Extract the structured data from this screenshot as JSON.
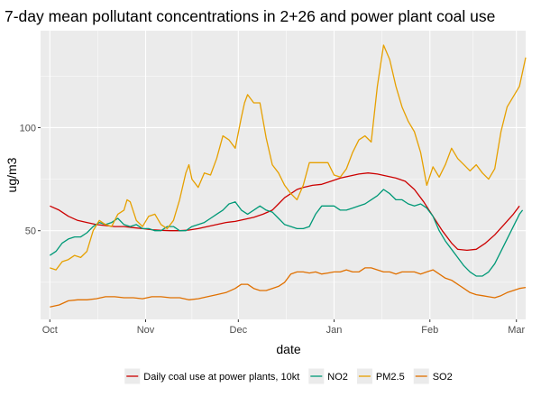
{
  "chart_data": {
    "type": "line",
    "title": "7-day mean pollutant concentrations in 2+26 and power plant coal use",
    "xlabel": "date",
    "ylabel": "ug/m3",
    "ylim": [
      7,
      147
    ],
    "xlim": [
      -3,
      154
    ],
    "x_ticks": [
      {
        "label": "Oct",
        "day": 0
      },
      {
        "label": "Nov",
        "day": 31
      },
      {
        "label": "Dec",
        "day": 61
      },
      {
        "label": "Jan",
        "day": 92
      },
      {
        "label": "Feb",
        "day": 123
      },
      {
        "label": "Mar",
        "day": 151
      }
    ],
    "y_ticks": [
      50,
      100
    ],
    "grid": true,
    "legend_position": "bottom",
    "x_unit": "days since Oct 1",
    "series": [
      {
        "name": "Daily coal use at power plants, 10kt",
        "color": "#cc0000",
        "points": [
          [
            0,
            62
          ],
          [
            3,
            60
          ],
          [
            6,
            57
          ],
          [
            9,
            55
          ],
          [
            12,
            54
          ],
          [
            15,
            53
          ],
          [
            18,
            52.5
          ],
          [
            21,
            52
          ],
          [
            24,
            52
          ],
          [
            27,
            51.5
          ],
          [
            30,
            51
          ],
          [
            33,
            50.5
          ],
          [
            36,
            50.2
          ],
          [
            39,
            50
          ],
          [
            42,
            50
          ],
          [
            45,
            50.3
          ],
          [
            48,
            51
          ],
          [
            51,
            52
          ],
          [
            54,
            53
          ],
          [
            57,
            54
          ],
          [
            60,
            54.5
          ],
          [
            63,
            55.5
          ],
          [
            66,
            56.5
          ],
          [
            69,
            58
          ],
          [
            72,
            60
          ],
          [
            74,
            63
          ],
          [
            76,
            66
          ],
          [
            78,
            68
          ],
          [
            80,
            70
          ],
          [
            82,
            71
          ],
          [
            85,
            72
          ],
          [
            88,
            72.5
          ],
          [
            91,
            74
          ],
          [
            94,
            75.5
          ],
          [
            97,
            76.5
          ],
          [
            100,
            77.5
          ],
          [
            103,
            78
          ],
          [
            106,
            77.5
          ],
          [
            109,
            76.5
          ],
          [
            112,
            75.5
          ],
          [
            115,
            74
          ],
          [
            118,
            70
          ],
          [
            121,
            64
          ],
          [
            124,
            57
          ],
          [
            127,
            50
          ],
          [
            130,
            44
          ],
          [
            132,
            41
          ],
          [
            135,
            40.5
          ],
          [
            138,
            41
          ],
          [
            141,
            44
          ],
          [
            144,
            48
          ],
          [
            147,
            53
          ],
          [
            150,
            58
          ],
          [
            152,
            62
          ]
        ]
      },
      {
        "name": "NO2",
        "color": "#009977",
        "points": [
          [
            0,
            38
          ],
          [
            2,
            40
          ],
          [
            4,
            44
          ],
          [
            6,
            46
          ],
          [
            8,
            47
          ],
          [
            10,
            47
          ],
          [
            12,
            49
          ],
          [
            14,
            52
          ],
          [
            16,
            54
          ],
          [
            18,
            53
          ],
          [
            20,
            54
          ],
          [
            22,
            56
          ],
          [
            24,
            53
          ],
          [
            26,
            52
          ],
          [
            28,
            53
          ],
          [
            30,
            51
          ],
          [
            32,
            51
          ],
          [
            34,
            50
          ],
          [
            36,
            50
          ],
          [
            38,
            52
          ],
          [
            40,
            52
          ],
          [
            42,
            50
          ],
          [
            44,
            50
          ],
          [
            46,
            52
          ],
          [
            48,
            53
          ],
          [
            50,
            54
          ],
          [
            52,
            56
          ],
          [
            54,
            58
          ],
          [
            56,
            60
          ],
          [
            58,
            63
          ],
          [
            60,
            64
          ],
          [
            62,
            60
          ],
          [
            64,
            58
          ],
          [
            66,
            60
          ],
          [
            68,
            62
          ],
          [
            70,
            60
          ],
          [
            72,
            59
          ],
          [
            74,
            56
          ],
          [
            76,
            53
          ],
          [
            78,
            52
          ],
          [
            80,
            51
          ],
          [
            82,
            51
          ],
          [
            84,
            52
          ],
          [
            86,
            58
          ],
          [
            88,
            62
          ],
          [
            90,
            62
          ],
          [
            92,
            62
          ],
          [
            94,
            60
          ],
          [
            96,
            60
          ],
          [
            98,
            61
          ],
          [
            100,
            62
          ],
          [
            102,
            63
          ],
          [
            104,
            65
          ],
          [
            106,
            67
          ],
          [
            108,
            70
          ],
          [
            110,
            68
          ],
          [
            112,
            65
          ],
          [
            114,
            65
          ],
          [
            116,
            63
          ],
          [
            118,
            62
          ],
          [
            120,
            63
          ],
          [
            122,
            61
          ],
          [
            124,
            57
          ],
          [
            126,
            50
          ],
          [
            128,
            45
          ],
          [
            130,
            41
          ],
          [
            132,
            37
          ],
          [
            134,
            33
          ],
          [
            136,
            30
          ],
          [
            138,
            28
          ],
          [
            140,
            28
          ],
          [
            142,
            30
          ],
          [
            144,
            34
          ],
          [
            146,
            40
          ],
          [
            148,
            46
          ],
          [
            150,
            52
          ],
          [
            152,
            58
          ],
          [
            153,
            60
          ]
        ]
      },
      {
        "name": "PM2.5",
        "color": "#e6a000",
        "points": [
          [
            0,
            32
          ],
          [
            2,
            31
          ],
          [
            4,
            35
          ],
          [
            6,
            36
          ],
          [
            8,
            38
          ],
          [
            10,
            37
          ],
          [
            12,
            40
          ],
          [
            14,
            50
          ],
          [
            16,
            55
          ],
          [
            18,
            53
          ],
          [
            20,
            52
          ],
          [
            22,
            58
          ],
          [
            24,
            60
          ],
          [
            25,
            65
          ],
          [
            26,
            64
          ],
          [
            28,
            55
          ],
          [
            30,
            52
          ],
          [
            32,
            57
          ],
          [
            34,
            58
          ],
          [
            36,
            53
          ],
          [
            38,
            51
          ],
          [
            40,
            55
          ],
          [
            42,
            65
          ],
          [
            44,
            78
          ],
          [
            45,
            82
          ],
          [
            46,
            75
          ],
          [
            48,
            71
          ],
          [
            50,
            78
          ],
          [
            52,
            77
          ],
          [
            54,
            85
          ],
          [
            56,
            96
          ],
          [
            58,
            94
          ],
          [
            60,
            90
          ],
          [
            62,
            105
          ],
          [
            63,
            112
          ],
          [
            64,
            116
          ],
          [
            66,
            112
          ],
          [
            68,
            112
          ],
          [
            70,
            95
          ],
          [
            72,
            82
          ],
          [
            74,
            78
          ],
          [
            76,
            72
          ],
          [
            78,
            68
          ],
          [
            80,
            65
          ],
          [
            82,
            72
          ],
          [
            84,
            83
          ],
          [
            86,
            83
          ],
          [
            88,
            83
          ],
          [
            90,
            83
          ],
          [
            92,
            77
          ],
          [
            94,
            76
          ],
          [
            96,
            80
          ],
          [
            98,
            88
          ],
          [
            100,
            94
          ],
          [
            102,
            96
          ],
          [
            104,
            93
          ],
          [
            106,
            120
          ],
          [
            108,
            140
          ],
          [
            110,
            133
          ],
          [
            112,
            120
          ],
          [
            114,
            110
          ],
          [
            116,
            103
          ],
          [
            118,
            98
          ],
          [
            120,
            88
          ],
          [
            122,
            72
          ],
          [
            124,
            81
          ],
          [
            126,
            76
          ],
          [
            128,
            82
          ],
          [
            130,
            90
          ],
          [
            132,
            85
          ],
          [
            134,
            82
          ],
          [
            136,
            79
          ],
          [
            138,
            82
          ],
          [
            140,
            78
          ],
          [
            142,
            75
          ],
          [
            144,
            80
          ],
          [
            146,
            98
          ],
          [
            148,
            110
          ],
          [
            150,
            115
          ],
          [
            152,
            120
          ],
          [
            154,
            134
          ]
        ]
      },
      {
        "name": "SO2",
        "color": "#e07000",
        "points": [
          [
            0,
            13
          ],
          [
            3,
            14
          ],
          [
            6,
            16
          ],
          [
            9,
            16.5
          ],
          [
            12,
            16.5
          ],
          [
            15,
            17
          ],
          [
            18,
            18
          ],
          [
            21,
            18
          ],
          [
            24,
            17.5
          ],
          [
            27,
            17.5
          ],
          [
            30,
            17
          ],
          [
            33,
            18
          ],
          [
            36,
            18
          ],
          [
            39,
            17.5
          ],
          [
            42,
            17.5
          ],
          [
            45,
            16.5
          ],
          [
            48,
            17
          ],
          [
            51,
            18
          ],
          [
            54,
            19
          ],
          [
            57,
            20
          ],
          [
            60,
            22
          ],
          [
            62,
            24
          ],
          [
            64,
            24
          ],
          [
            66,
            22
          ],
          [
            68,
            21
          ],
          [
            70,
            21
          ],
          [
            72,
            22
          ],
          [
            74,
            23
          ],
          [
            76,
            25
          ],
          [
            78,
            29
          ],
          [
            80,
            30
          ],
          [
            82,
            30
          ],
          [
            84,
            29.5
          ],
          [
            86,
            30
          ],
          [
            88,
            29
          ],
          [
            90,
            29.5
          ],
          [
            92,
            30
          ],
          [
            94,
            30
          ],
          [
            96,
            31
          ],
          [
            98,
            30
          ],
          [
            100,
            30
          ],
          [
            102,
            32
          ],
          [
            104,
            32
          ],
          [
            106,
            31
          ],
          [
            108,
            30
          ],
          [
            110,
            30
          ],
          [
            112,
            29
          ],
          [
            114,
            30
          ],
          [
            116,
            30
          ],
          [
            118,
            30
          ],
          [
            120,
            29
          ],
          [
            122,
            30
          ],
          [
            124,
            31
          ],
          [
            126,
            29
          ],
          [
            128,
            27
          ],
          [
            130,
            26
          ],
          [
            132,
            24
          ],
          [
            134,
            22
          ],
          [
            136,
            20
          ],
          [
            138,
            19
          ],
          [
            140,
            18.5
          ],
          [
            142,
            18
          ],
          [
            144,
            17.5
          ],
          [
            146,
            18.5
          ],
          [
            148,
            20
          ],
          [
            150,
            21
          ],
          [
            152,
            22
          ],
          [
            154,
            22.5
          ]
        ]
      }
    ]
  }
}
